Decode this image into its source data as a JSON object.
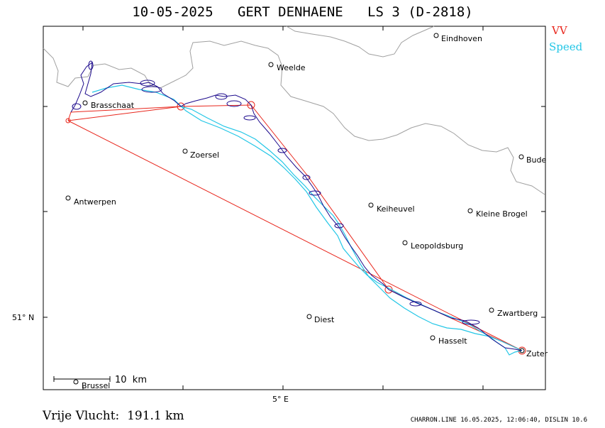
{
  "title": "10-05-2025   GERT DENHAENE   LS 3 (D-2818)",
  "legend": {
    "vv": "VV",
    "speed": "Speed"
  },
  "colors": {
    "vv": "#e8261c",
    "speed": "#22c6e6",
    "track": "#1c0a8c",
    "border": "#a0a0a0"
  },
  "axes": {
    "lat_label": "51° N",
    "lon_label": "5° E"
  },
  "scale": {
    "label": "10  km"
  },
  "cities": [
    {
      "name": "Eindhoven"
    },
    {
      "name": "Weelde"
    },
    {
      "name": "Brasschaat"
    },
    {
      "name": "Zoersel"
    },
    {
      "name": "Bude"
    },
    {
      "name": "Antwerpen"
    },
    {
      "name": "Keiheuvel"
    },
    {
      "name": "Kleine Brogel"
    },
    {
      "name": "Leopoldsburg"
    },
    {
      "name": "Zwartberg"
    },
    {
      "name": "Diest"
    },
    {
      "name": "Hasselt"
    },
    {
      "name": "Zuter"
    },
    {
      "name": "Brussel"
    }
  ],
  "footer": {
    "distance": "Vrije Vlucht:  191.1 km",
    "credit": "CHARRON.LINE 16.05.2025, 12:06:40, DISLIN 10.6"
  }
}
